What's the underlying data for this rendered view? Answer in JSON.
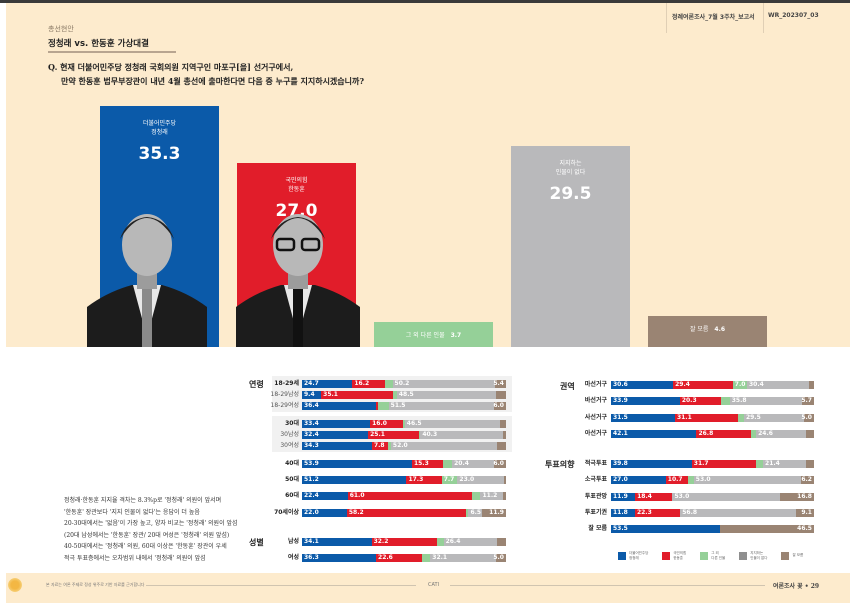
{
  "header": {
    "section_tag": "총선현안",
    "title": "정청래 vs. 한동훈 가상대결",
    "report_name": "정례여론조사_7월 3주차_보고서",
    "report_code": "WR_202307_03"
  },
  "question": {
    "line1": "Q. 현재 더불어민주당 정청래 국회의원 지역구인 마포구[을] 선거구에서,",
    "line2": "만약 한동훈 법무부장관이 내년 4월 총선에 출마한다면 다음 중 누구를 지지하시겠습니까?"
  },
  "colors": {
    "blue": "#0b5aa9",
    "red": "#e11d2a",
    "green": "#95d098",
    "gray": "#b9b9bb",
    "brown": "#9a8473",
    "panel": "#fdebcd"
  },
  "chart_data": [
    {
      "type": "bar",
      "title": "정청래 vs. 한동훈 가상대결",
      "categories": [
        "더불어민주당 정청래",
        "국민의힘 한동훈",
        "그 외 다른 인물",
        "지지하는 인물이 없다",
        "잘 모름"
      ],
      "values": [
        35.3,
        27.0,
        3.7,
        29.5,
        4.6
      ],
      "labels": [
        {
          "line1": "더불어민주당",
          "line2": "정청래",
          "value": "35.3"
        },
        {
          "line1": "국민의힘",
          "line2": "한동훈",
          "value": "27.0"
        },
        {
          "line1": "그 외 다른 인물",
          "line2": "",
          "value": "3.7"
        },
        {
          "line1": "지지하는",
          "line2": "인물이 없다",
          "value": "29.5"
        },
        {
          "line1": "잘 모름",
          "line2": "",
          "value": "4.6"
        }
      ],
      "unit": "%"
    },
    {
      "type": "bar",
      "stacked": true,
      "orientation": "horizontal",
      "series_names": [
        "더불어민주당 정청래",
        "국민의힘 한동훈",
        "그 외 다른 인물",
        "지지하는 인물이 없다",
        "잘 모름"
      ],
      "groups": [
        {
          "category": "연령",
          "rows": [
            {
              "label": "18-29세",
              "style": "bold",
              "values": [
                24.7,
                16.2,
                3.5,
                50.2,
                5.4
              ],
              "shown": [
                "24.7",
                "16.2",
                "",
                "50.2",
                "5.4"
              ],
              "boxed": 1
            },
            {
              "label": "18-29남성",
              "style": "light",
              "values": [
                9.4,
                35.1,
                2.0,
                48.5,
                5.0
              ],
              "shown": [
                "9.4",
                "35.1",
                "",
                "48.5",
                ""
              ],
              "boxed": 1
            },
            {
              "label": "18-29여성",
              "style": "light",
              "values": [
                36.4,
                1.0,
                5.1,
                51.5,
                6.0
              ],
              "shown": [
                "36.4",
                "",
                "",
                "51.5",
                "6.0"
              ],
              "boxed": 1
            },
            {
              "label": "30대",
              "style": "bold",
              "values": [
                33.4,
                16.0,
                1.0,
                46.5,
                3.1
              ],
              "shown": [
                "33.4",
                "16.0",
                "",
                "46.5",
                ""
              ],
              "boxed": 2
            },
            {
              "label": "30남성",
              "style": "light",
              "values": [
                32.4,
                25.1,
                0.5,
                40.3,
                1.7
              ],
              "shown": [
                "32.4",
                "25.1",
                "",
                "40.3",
                ""
              ],
              "boxed": 2
            },
            {
              "label": "30여성",
              "style": "light",
              "values": [
                34.3,
                7.8,
                1.5,
                52.0,
                4.4
              ],
              "shown": [
                "34.3",
                "7.8",
                "",
                "52.0",
                ""
              ],
              "boxed": 2
            },
            {
              "label": "40대",
              "style": "bold",
              "values": [
                53.9,
                15.3,
                4.4,
                20.4,
                6.0
              ],
              "shown": [
                "53.9",
                "15.3",
                "",
                "20.4",
                "6.0"
              ],
              "boxed": 0
            },
            {
              "label": "50대",
              "style": "bold",
              "values": [
                51.2,
                17.3,
                7.7,
                23.0,
                0.8
              ],
              "shown": [
                "51.2",
                "17.3",
                "7.7",
                "23.0",
                ""
              ],
              "boxed": 0
            },
            {
              "label": "60대",
              "style": "bold",
              "values": [
                22.4,
                61.0,
                4.1,
                11.2,
                1.3
              ],
              "shown": [
                "22.4",
                "61.0",
                "",
                "11.2",
                ""
              ],
              "boxed": 0
            },
            {
              "label": "70세이상",
              "style": "bold",
              "values": [
                22.0,
                58.2,
                1.4,
                6.5,
                11.9
              ],
              "shown": [
                "22.0",
                "58.2",
                "",
                "6.5",
                "11.9"
              ],
              "boxed": 0
            }
          ]
        },
        {
          "category": "성별",
          "rows": [
            {
              "label": "남성",
              "style": "bold",
              "values": [
                34.1,
                32.2,
                3.1,
                26.4,
                4.2
              ],
              "shown": [
                "34.1",
                "32.2",
                "",
                "26.4",
                ""
              ],
              "boxed": 0
            },
            {
              "label": "여성",
              "style": "bold",
              "values": [
                36.3,
                22.6,
                4.0,
                32.1,
                5.0
              ],
              "shown": [
                "36.3",
                "22.6",
                "",
                "32.1",
                "5.0"
              ],
              "boxed": 0
            }
          ]
        },
        {
          "category": "권역",
          "rows": [
            {
              "label": "마선거구",
              "style": "bold",
              "values": [
                30.6,
                29.4,
                7.0,
                30.4,
                2.6
              ],
              "shown": [
                "30.6",
                "29.4",
                "7.0",
                "30.4",
                ""
              ],
              "boxed": 0
            },
            {
              "label": "바선거구",
              "style": "bold",
              "values": [
                33.9,
                20.3,
                4.3,
                35.8,
                5.7
              ],
              "shown": [
                "33.9",
                "20.3",
                "",
                "35.8",
                "5.7"
              ],
              "boxed": 0
            },
            {
              "label": "사선거구",
              "style": "bold",
              "values": [
                31.5,
                31.1,
                2.9,
                29.5,
                5.0
              ],
              "shown": [
                "31.5",
                "31.1",
                "",
                "29.5",
                "5.0"
              ],
              "boxed": 0
            },
            {
              "label": "아선거구",
              "style": "bold",
              "values": [
                42.1,
                26.8,
                2.6,
                24.6,
                3.9
              ],
              "shown": [
                "42.1",
                "26.8",
                "",
                "24.6",
                ""
              ],
              "boxed": 0
            }
          ]
        },
        {
          "category": "투표의향",
          "rows": [
            {
              "label": "적극투표",
              "style": "bold",
              "values": [
                39.8,
                31.7,
                3.4,
                21.4,
                3.7
              ],
              "shown": [
                "39.8",
                "31.7",
                "",
                "21.4",
                ""
              ],
              "boxed": 0
            },
            {
              "label": "소극투표",
              "style": "bold",
              "values": [
                27.0,
                10.7,
                3.1,
                53.0,
                6.2
              ],
              "shown": [
                "27.0",
                "10.7",
                "",
                "53.0",
                "6.2"
              ],
              "boxed": 0
            },
            {
              "label": "투표관망",
              "style": "bold",
              "values": [
                11.9,
                18.4,
                0.0,
                53.0,
                16.8
              ],
              "shown": [
                "11.9",
                "18.4",
                "",
                "53.0",
                "16.8"
              ],
              "boxed": 0
            },
            {
              "label": "투표기권",
              "style": "bold",
              "values": [
                11.8,
                22.3,
                0.0,
                56.8,
                9.1
              ],
              "shown": [
                "11.8",
                "22.3",
                "",
                "56.8",
                "9.1"
              ],
              "boxed": 0
            },
            {
              "label": "잘 모름",
              "style": "bold",
              "values": [
                53.5,
                0.0,
                0.0,
                0.0,
                46.5
              ],
              "shown": [
                "53.5",
                "",
                "",
                "",
                "46.5"
              ],
              "boxed": 0
            }
          ]
        }
      ],
      "xlim": [
        0,
        100
      ],
      "unit": "%"
    }
  ],
  "notes": [
    "정청래·한동훈 지지율 격차는 8.3%p로 '정청래' 의원이 앞서며",
    "'한동훈' 장관보다 '지지 인물이 없다'는 응답이 더 높음",
    "20-30대에서는 '없음'이 가장 높고, 양자 비교는 '정청래' 의원이 앞섬",
    "(20대 남성에서는 '한동훈' 장관/ 20대 여성은 '정청래' 의원 앞섬)",
    "40-50대에서는 '정청래' 의원, 60대 이상은 '한동훈' 장관이 우세",
    "적극 투표층에서는 오차범위 내에서 '정청래' 의원이 앞섬"
  ],
  "legend": [
    {
      "label1": "더불어민주당",
      "label2": "정청래",
      "color": "#0b5aa9"
    },
    {
      "label1": "국민의힘",
      "label2": "한동훈",
      "color": "#e11d2a"
    },
    {
      "label1": "그 외",
      "label2": "다른 인물",
      "color": "#95d098"
    },
    {
      "label1": "지지하는",
      "label2": "인물이 없다",
      "color": "#b9b9bb"
    },
    {
      "label1": "잘 모름",
      "label2": "",
      "color": "#9a8473"
    }
  ],
  "footer": {
    "left_text": "본 자료는 여론 주제로 정성 위주로 기반 자료를 근거합니다",
    "method": "CATI",
    "page": "여론조사 꽃 • 29"
  }
}
